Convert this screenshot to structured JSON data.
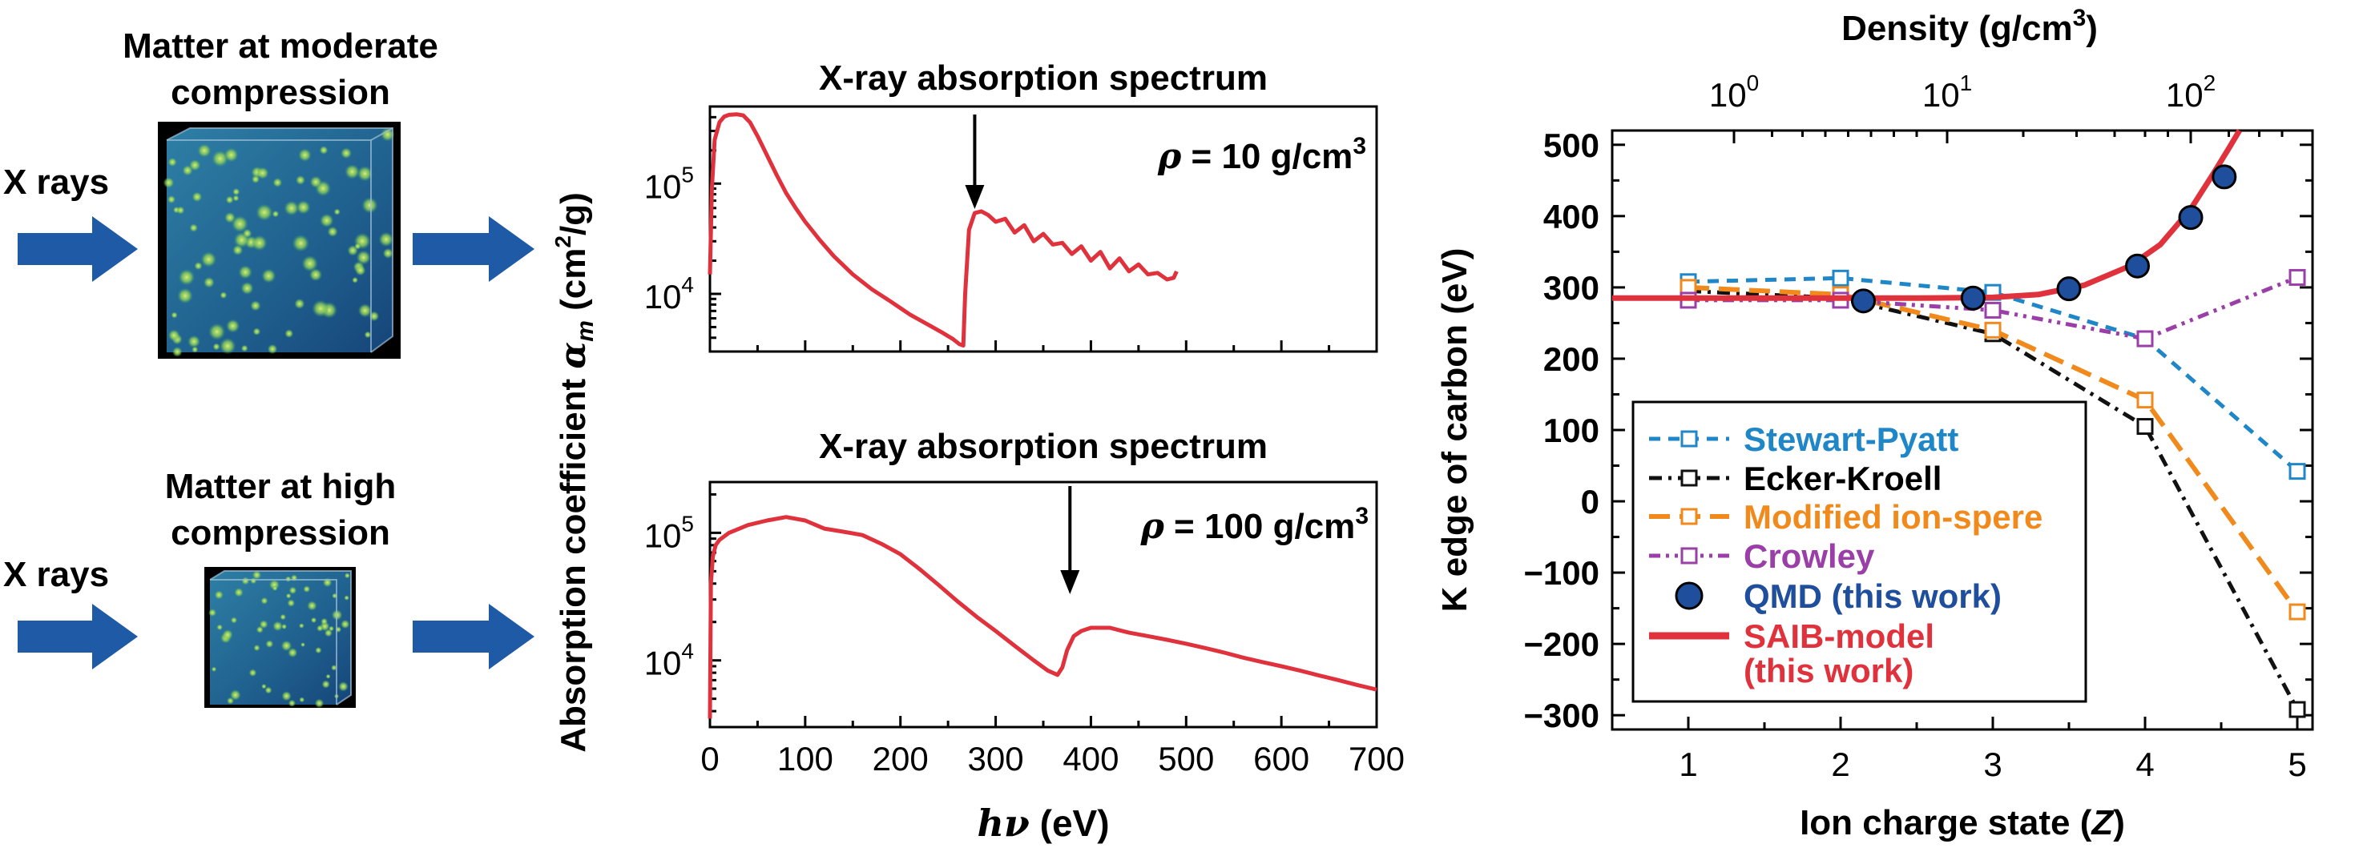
{
  "left_panel": {
    "top_label_line1": "Matter at moderate",
    "top_label_line2": "compression",
    "bottom_label_line1": "Matter at high",
    "bottom_label_line2": "compression",
    "xrays_label": "X rays",
    "arrow_color": "#1f5aa6"
  },
  "chart_data": [
    {
      "type": "line",
      "title": "X-ray absorption spectrum",
      "annotation_rho": "ρ",
      "annotation_value": " = 10 g/cm",
      "annotation_sup": "3",
      "ylabel_main": "Absorption coefficient ",
      "ylabel_symbol": "α",
      "ylabel_sub": "m",
      "ylabel_units": " (cm",
      "ylabel_units_sup": "2",
      "ylabel_units_end": "/g)",
      "xlim": [
        0,
        700
      ],
      "ylim": [
        3000,
        500000
      ],
      "yscale": "log",
      "yticks": [
        10000,
        100000
      ],
      "ytick_labels": [
        {
          "base": "10",
          "exp": "4"
        },
        {
          "base": "10",
          "exp": "5"
        }
      ],
      "edge_arrow_x": 278,
      "series": [
        {
          "color": "#e0323c",
          "x": [
            0,
            2,
            5,
            10,
            15,
            20,
            28,
            35,
            42,
            50,
            60,
            70,
            80,
            90,
            100,
            115,
            130,
            150,
            170,
            190,
            210,
            230,
            245,
            255,
            262,
            266,
            268,
            272,
            278,
            285,
            292,
            300,
            310,
            320,
            330,
            340,
            350,
            360,
            370,
            380,
            390,
            400,
            410,
            420,
            430,
            440,
            450,
            460,
            470,
            480,
            487,
            490
          ],
          "y": [
            15000,
            90000,
            250000,
            360000,
            405000,
            420000,
            425000,
            415000,
            360000,
            270000,
            180000,
            120000,
            82000,
            60000,
            45000,
            31000,
            22000,
            15000,
            11000,
            8500,
            6500,
            5200,
            4400,
            3900,
            3500,
            3400,
            10000,
            38000,
            54000,
            56000,
            52000,
            45000,
            48000,
            36000,
            42000,
            30000,
            35000,
            28000,
            29000,
            23000,
            27000,
            20000,
            24000,
            17000,
            21000,
            16000,
            18500,
            15000,
            15500,
            13500,
            14000,
            16000
          ]
        }
      ]
    },
    {
      "type": "line",
      "title": "X-ray absorption spectrum",
      "annotation_rho": "ρ",
      "annotation_value": " = 100 g/cm",
      "annotation_sup": "3",
      "xlabel_symbol": "hν",
      "xlabel_units": " (eV)",
      "xlim": [
        0,
        700
      ],
      "ylim": [
        3000,
        250000
      ],
      "yscale": "log",
      "xticks": [
        0,
        100,
        200,
        300,
        400,
        500,
        600,
        700
      ],
      "xtick_labels": [
        "0",
        "100",
        "200",
        "300",
        "400",
        "500",
        "600",
        "700"
      ],
      "yticks": [
        10000,
        100000
      ],
      "ytick_labels": [
        {
          "base": "10",
          "exp": "4"
        },
        {
          "base": "10",
          "exp": "5"
        }
      ],
      "edge_arrow_x": 378,
      "series": [
        {
          "color": "#e0323c",
          "x": [
            0,
            1,
            3,
            6,
            10,
            20,
            40,
            60,
            80,
            100,
            120,
            140,
            160,
            180,
            200,
            220,
            240,
            260,
            280,
            300,
            320,
            340,
            355,
            365,
            370,
            375,
            382,
            390,
            400,
            420,
            440,
            460,
            480,
            500,
            520,
            540,
            560,
            580,
            600,
            620,
            640,
            660,
            680,
            700
          ],
          "y": [
            3500,
            40000,
            65000,
            80000,
            88000,
            100000,
            115000,
            125000,
            133000,
            125000,
            108000,
            102000,
            96000,
            82000,
            68000,
            52000,
            39000,
            29000,
            22000,
            17000,
            13000,
            10000,
            8300,
            7700,
            8800,
            12000,
            15500,
            17000,
            18000,
            18000,
            16500,
            15500,
            14500,
            13500,
            12500,
            11500,
            10500,
            9700,
            9000,
            8300,
            7600,
            7000,
            6400,
            5900
          ]
        }
      ]
    },
    {
      "type": "line",
      "xlabel_main": "Ion charge state (",
      "xlabel_symbol": "Z",
      "xlabel_end": ")",
      "ylabel": "K edge of carbon (eV)",
      "top_axis_label_main": "Density (g/cm",
      "top_axis_label_sup": "3",
      "top_axis_label_end": ")",
      "xlim": [
        0.5,
        5.1
      ],
      "ylim": [
        -320,
        520
      ],
      "xticks": [
        1,
        2,
        3,
        4,
        5
      ],
      "xtick_labels": [
        "1",
        "2",
        "3",
        "4",
        "5"
      ],
      "yticks": [
        -300,
        -200,
        -100,
        0,
        100,
        200,
        300,
        400,
        500
      ],
      "ytick_labels": [
        "−300",
        "−200",
        "−100",
        "0",
        "100",
        "200",
        "300",
        "400",
        "500"
      ],
      "top_ticks": [
        {
          "base": "10",
          "exp": "0",
          "z": 1.3
        },
        {
          "base": "10",
          "exp": "1",
          "z": 2.7
        },
        {
          "base": "10",
          "exp": "2",
          "z": 4.3
        }
      ],
      "series": [
        {
          "name": "Stewart-Pyatt",
          "color": "#1f86c8",
          "style": "dashed",
          "marker": "square",
          "x": [
            1,
            2,
            3,
            4,
            5
          ],
          "y": [
            308,
            313,
            293,
            228,
            42
          ]
        },
        {
          "name": "Ecker-Kroell",
          "color": "#111111",
          "style": "dashdot",
          "marker": "square",
          "x": [
            1,
            2,
            3,
            4,
            5
          ],
          "y": [
            295,
            285,
            235,
            105,
            -292
          ]
        },
        {
          "name": "Modified ion-spere",
          "color": "#f08a1c",
          "style": "longdash",
          "marker": "square",
          "x": [
            1,
            2,
            3,
            4,
            5
          ],
          "y": [
            300,
            290,
            240,
            142,
            -155
          ]
        },
        {
          "name": "Crowley",
          "color": "#9a3fa8",
          "style": "dashdotdot",
          "marker": "square",
          "x": [
            1,
            2,
            3,
            4,
            5
          ],
          "y": [
            282,
            282,
            268,
            228,
            314
          ]
        },
        {
          "name": "QMD (this work)",
          "color": "#1f4f9c",
          "style": "none",
          "marker": "circle",
          "x": [
            2.15,
            2.87,
            3.5,
            3.95,
            4.3,
            4.52
          ],
          "y": [
            281,
            285,
            298,
            330,
            398,
            455
          ],
          "error": [
            8,
            8,
            10,
            10,
            12,
            14
          ]
        },
        {
          "name": "SAIB-model (this work)",
          "name_line1": "SAIB-model",
          "name_line2": "(this work)",
          "color": "#e0323c",
          "style": "solid",
          "marker": "none",
          "x": [
            0.5,
            1,
            1.5,
            2,
            2.5,
            3,
            3.3,
            3.6,
            3.9,
            4.1,
            4.3,
            4.45,
            4.55,
            4.62
          ],
          "y": [
            285,
            285,
            285,
            285,
            285,
            286,
            290,
            303,
            330,
            360,
            410,
            460,
            495,
            520
          ]
        }
      ],
      "legend_position": "lower-left"
    }
  ]
}
